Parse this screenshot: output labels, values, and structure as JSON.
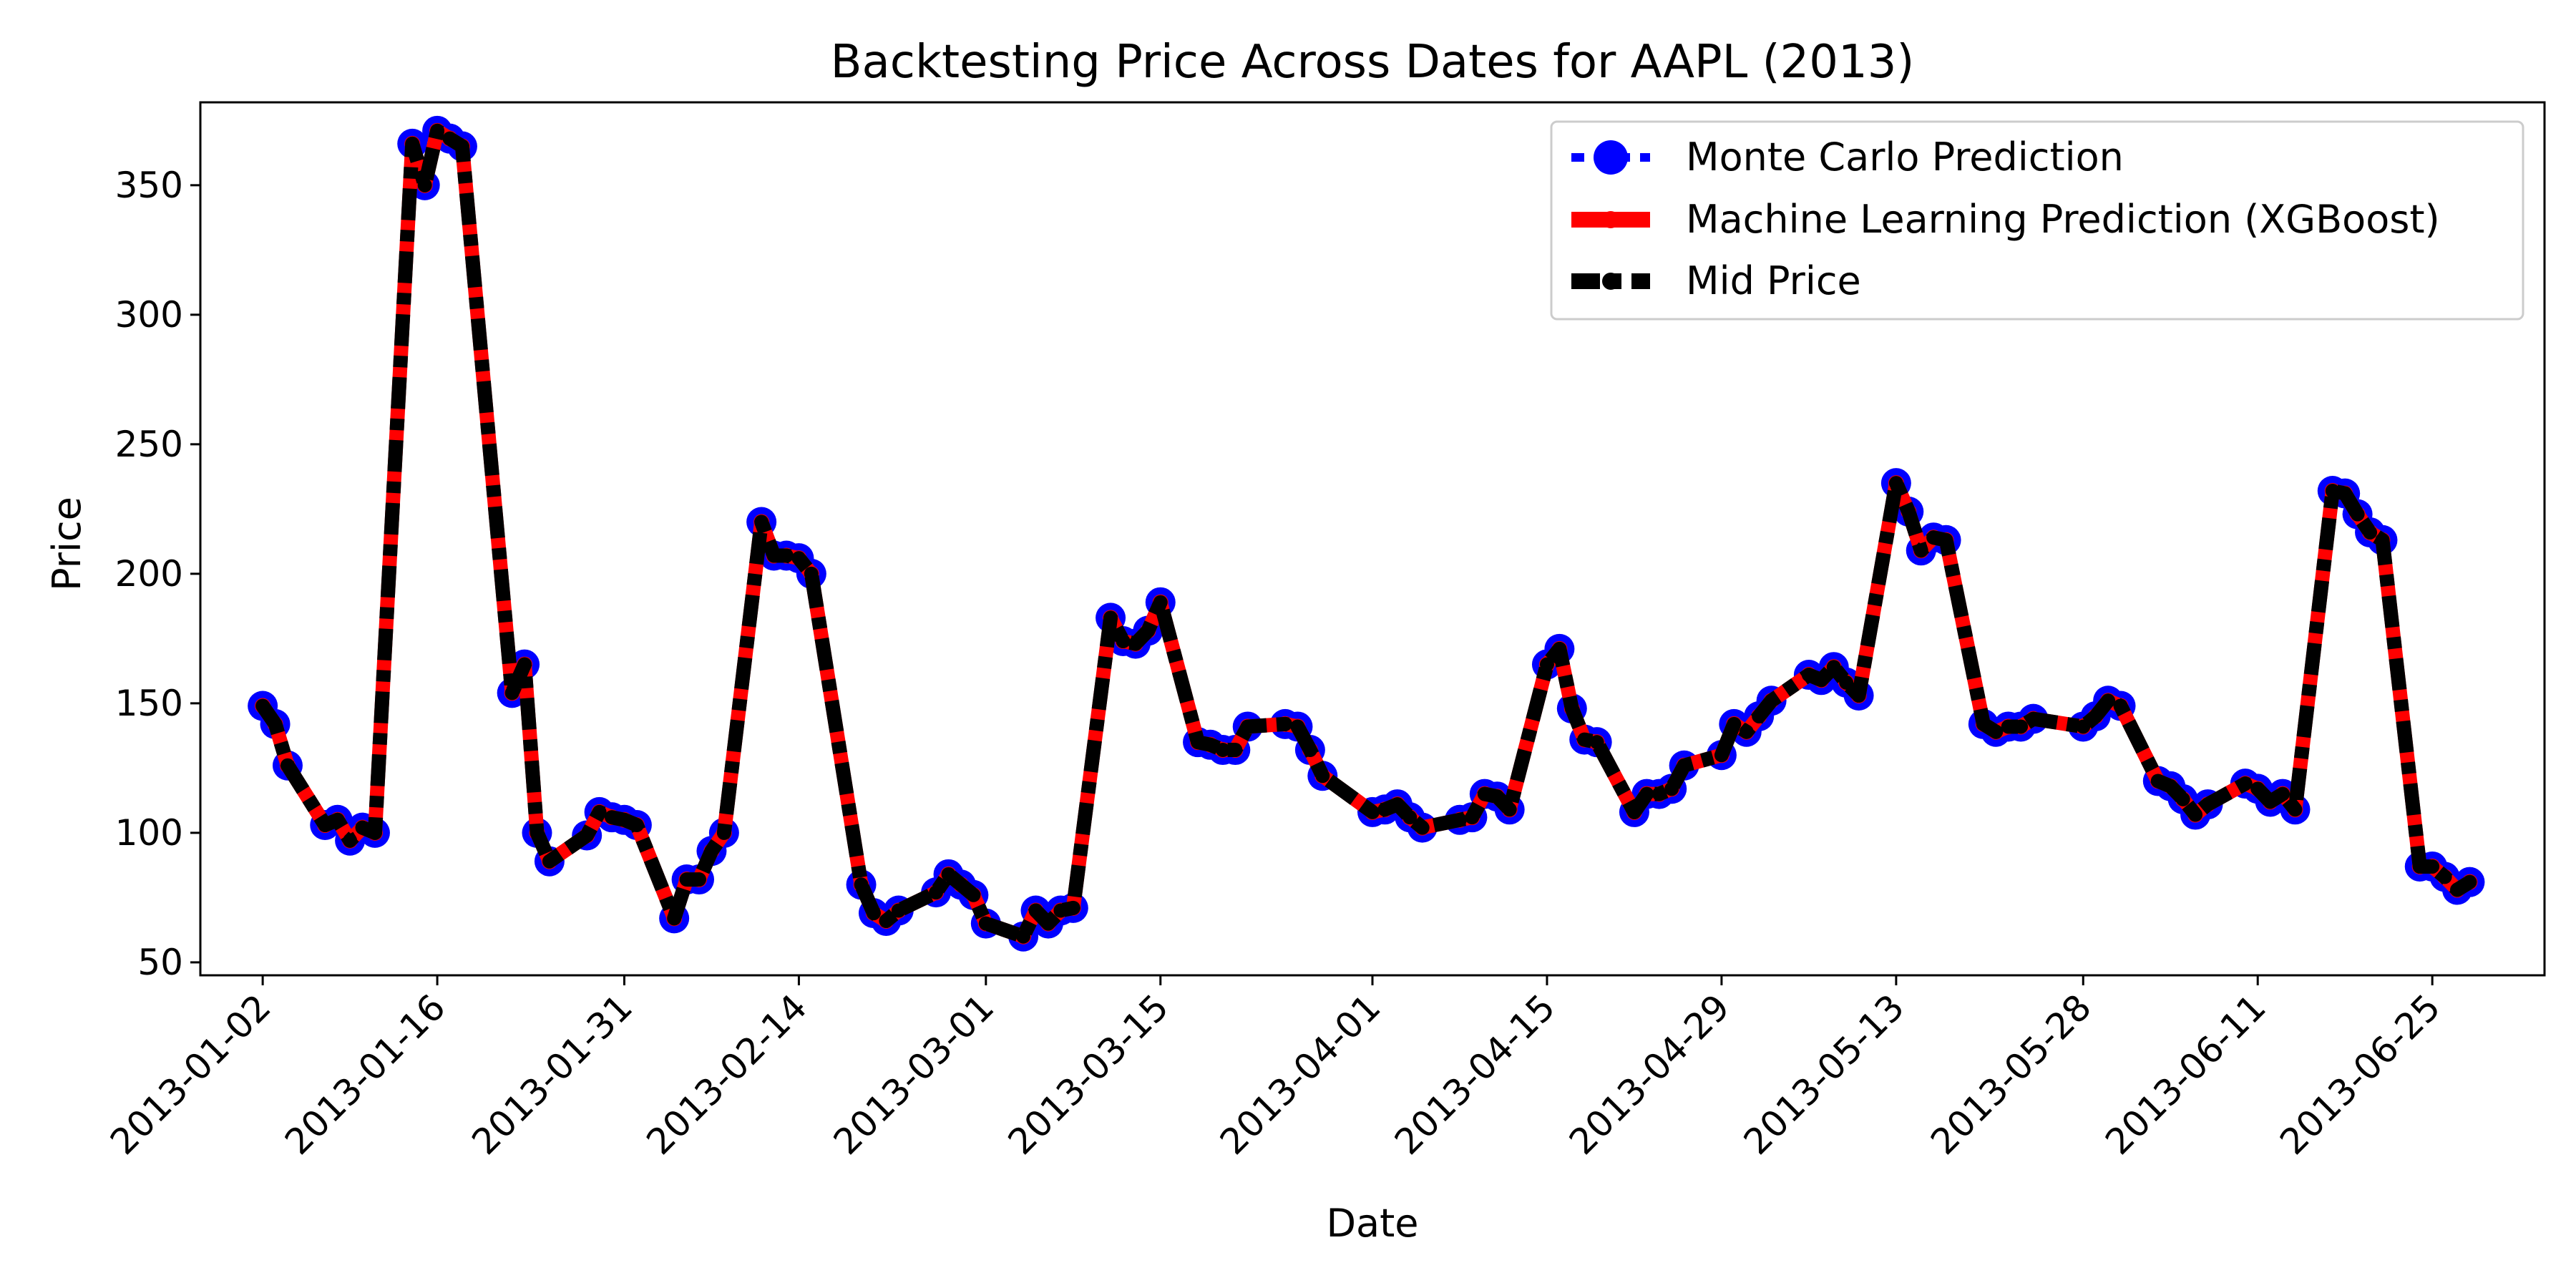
{
  "chart_data": {
    "type": "line",
    "title": "Backtesting Price Across Dates for AAPL (2013)",
    "xlabel": "Date",
    "ylabel": "Price",
    "ylim": [
      45,
      382
    ],
    "yticks": [
      50,
      100,
      150,
      200,
      250,
      300,
      350
    ],
    "xlim": [
      "2012-12-28",
      "2013-07-04"
    ],
    "xticks": [
      "2013-01-02",
      "2013-01-16",
      "2013-01-31",
      "2013-02-14",
      "2013-03-01",
      "2013-03-15",
      "2013-04-01",
      "2013-04-15",
      "2013-04-29",
      "2013-05-13",
      "2013-05-28",
      "2013-06-11",
      "2013-06-25"
    ],
    "grid": false,
    "legend_position": "top-right",
    "x": [
      "2013-01-02",
      "2013-01-03",
      "2013-01-04",
      "2013-01-07",
      "2013-01-08",
      "2013-01-09",
      "2013-01-10",
      "2013-01-11",
      "2013-01-14",
      "2013-01-15",
      "2013-01-16",
      "2013-01-17",
      "2013-01-18",
      "2013-01-22",
      "2013-01-23",
      "2013-01-24",
      "2013-01-25",
      "2013-01-28",
      "2013-01-29",
      "2013-01-30",
      "2013-01-31",
      "2013-02-01",
      "2013-02-04",
      "2013-02-05",
      "2013-02-06",
      "2013-02-07",
      "2013-02-08",
      "2013-02-11",
      "2013-02-12",
      "2013-02-13",
      "2013-02-14",
      "2013-02-15",
      "2013-02-19",
      "2013-02-20",
      "2013-02-21",
      "2013-02-22",
      "2013-02-25",
      "2013-02-26",
      "2013-02-27",
      "2013-02-28",
      "2013-03-01",
      "2013-03-04",
      "2013-03-05",
      "2013-03-06",
      "2013-03-07",
      "2013-03-08",
      "2013-03-11",
      "2013-03-12",
      "2013-03-13",
      "2013-03-14",
      "2013-03-15",
      "2013-03-18",
      "2013-03-19",
      "2013-03-20",
      "2013-03-21",
      "2013-03-22",
      "2013-03-25",
      "2013-03-26",
      "2013-03-27",
      "2013-03-28",
      "2013-04-01",
      "2013-04-02",
      "2013-04-03",
      "2013-04-04",
      "2013-04-05",
      "2013-04-08",
      "2013-04-09",
      "2013-04-10",
      "2013-04-11",
      "2013-04-12",
      "2013-04-15",
      "2013-04-16",
      "2013-04-17",
      "2013-04-18",
      "2013-04-19",
      "2013-04-22",
      "2013-04-23",
      "2013-04-24",
      "2013-04-25",
      "2013-04-26",
      "2013-04-29",
      "2013-04-30",
      "2013-05-01",
      "2013-05-02",
      "2013-05-03",
      "2013-05-06",
      "2013-05-07",
      "2013-05-08",
      "2013-05-09",
      "2013-05-10",
      "2013-05-13",
      "2013-05-14",
      "2013-05-15",
      "2013-05-16",
      "2013-05-17",
      "2013-05-20",
      "2013-05-21",
      "2013-05-22",
      "2013-05-23",
      "2013-05-24",
      "2013-05-28",
      "2013-05-29",
      "2013-05-30",
      "2013-05-31",
      "2013-06-03",
      "2013-06-04",
      "2013-06-05",
      "2013-06-06",
      "2013-06-07",
      "2013-06-10",
      "2013-06-11",
      "2013-06-12",
      "2013-06-13",
      "2013-06-14",
      "2013-06-17",
      "2013-06-18",
      "2013-06-19",
      "2013-06-20",
      "2013-06-21",
      "2013-06-24",
      "2013-06-25",
      "2013-06-26",
      "2013-06-27",
      "2013-06-28"
    ],
    "mid_price": [
      149,
      142,
      126,
      103,
      105,
      97,
      102,
      100,
      366,
      350,
      371,
      368,
      365,
      154,
      165,
      100,
      89,
      99,
      108,
      106,
      105,
      103,
      67,
      82,
      82,
      93,
      100,
      220,
      207,
      207,
      206,
      200,
      80,
      69,
      66,
      70,
      77,
      84,
      80,
      76,
      65,
      60,
      70,
      65,
      70,
      71,
      183,
      174,
      173,
      178,
      189,
      135,
      134,
      132,
      132,
      141,
      142,
      141,
      132,
      122,
      108,
      109,
      111,
      106,
      102,
      105,
      106,
      115,
      114,
      109,
      165,
      171,
      148,
      136,
      135,
      108,
      115,
      115,
      117,
      126,
      130,
      142,
      139,
      145,
      151,
      161,
      159,
      164,
      158,
      153,
      235,
      224,
      209,
      214,
      213,
      142,
      139,
      141,
      141,
      144,
      141,
      145,
      151,
      149,
      120,
      118,
      113,
      107,
      111,
      119,
      117,
      112,
      115,
      109,
      232,
      231,
      223,
      216,
      213,
      87,
      87,
      83,
      78,
      81
    ],
    "series": [
      {
        "name": "Monte Carlo Prediction",
        "color": "#0000ff"
      },
      {
        "name": "Machine Learning Prediction (XGBoost)",
        "color": "#ff0000"
      },
      {
        "name": "Mid Price",
        "color": "#000000"
      }
    ]
  }
}
